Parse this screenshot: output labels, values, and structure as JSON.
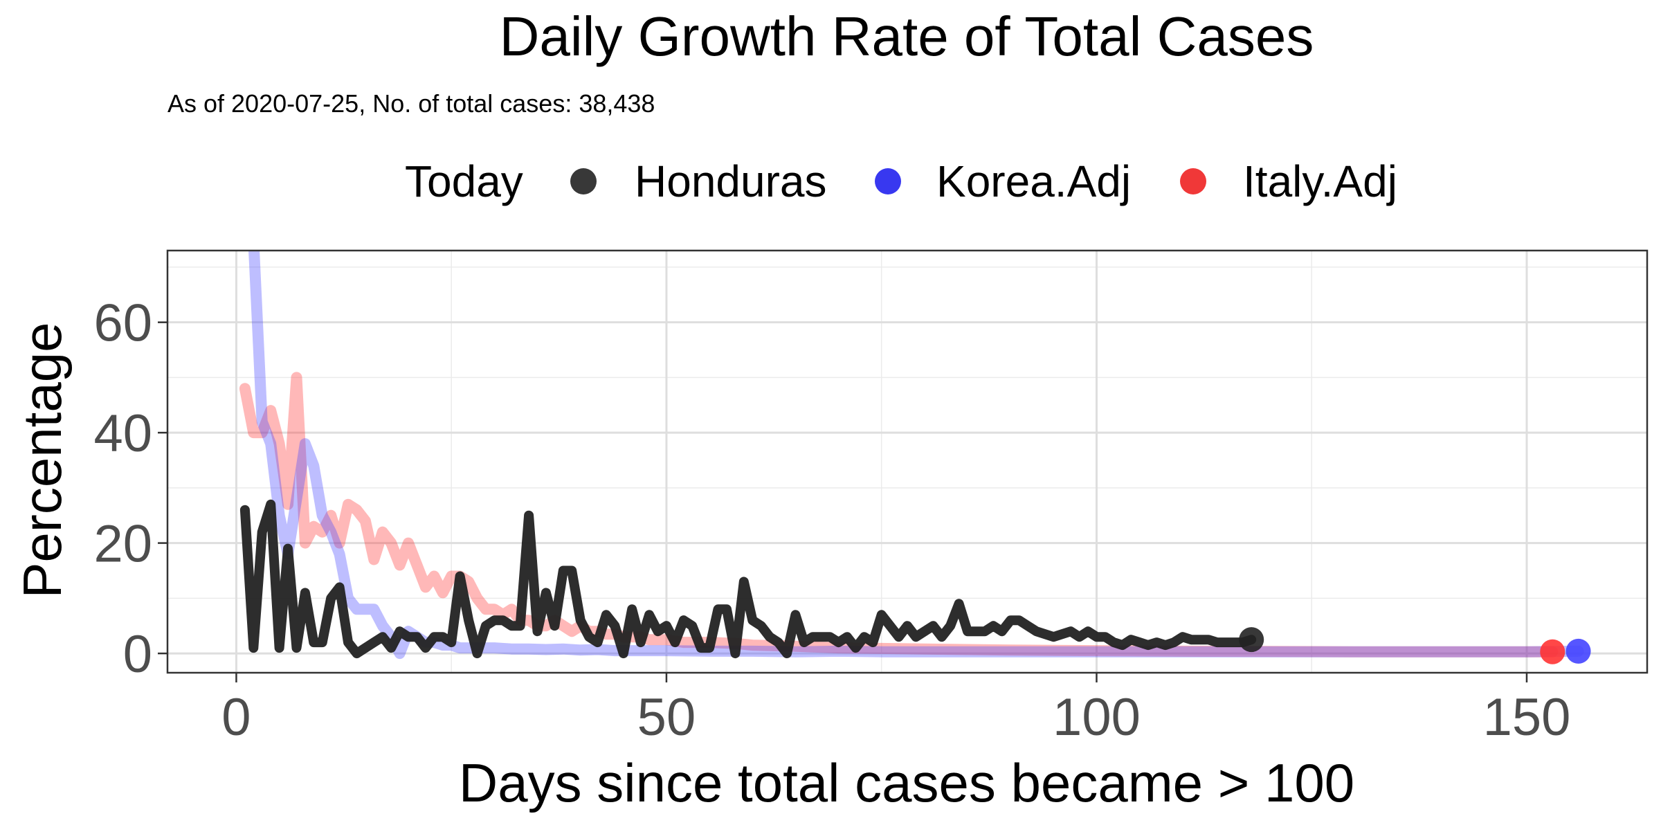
{
  "chart_data": {
    "type": "line",
    "title": "Daily Growth Rate of Total Cases",
    "subtitle": "As of 2020-07-25, No. of total cases: 38,438",
    "xlabel": "Days since total cases became > 100",
    "ylabel": "Percentage",
    "xlim": [
      -8,
      164
    ],
    "ylim": [
      -3.5,
      73
    ],
    "x_ticks": [
      0,
      50,
      100,
      150
    ],
    "y_ticks": [
      0,
      20,
      40,
      60
    ],
    "grid": true,
    "legend_position": "top",
    "legend": {
      "title": "Today",
      "entries": [
        {
          "label": "Honduras",
          "color": "#222222"
        },
        {
          "label": "Korea.Adj",
          "color": "#2222ee"
        },
        {
          "label": "Italy.Adj",
          "color": "#ee2222"
        }
      ]
    },
    "series": [
      {
        "name": "Italy.Adj",
        "color": "#ff3333",
        "today_point": {
          "x": 153,
          "y": 0.3
        },
        "points": [
          [
            1,
            48
          ],
          [
            2,
            40
          ],
          [
            3,
            40
          ],
          [
            4,
            44
          ],
          [
            5,
            38
          ],
          [
            6,
            27
          ],
          [
            7,
            50
          ],
          [
            8,
            20
          ],
          [
            9,
            23
          ],
          [
            10,
            22
          ],
          [
            11,
            25
          ],
          [
            12,
            20
          ],
          [
            13,
            27
          ],
          [
            14,
            26
          ],
          [
            15,
            24
          ],
          [
            16,
            17
          ],
          [
            17,
            22
          ],
          [
            18,
            20
          ],
          [
            19,
            16
          ],
          [
            20,
            20
          ],
          [
            21,
            16
          ],
          [
            22,
            12
          ],
          [
            23,
            14
          ],
          [
            24,
            11
          ],
          [
            25,
            14
          ],
          [
            26,
            14
          ],
          [
            27,
            13
          ],
          [
            28,
            10
          ],
          [
            29,
            8
          ],
          [
            30,
            8
          ],
          [
            31,
            7
          ],
          [
            32,
            8
          ],
          [
            33,
            6
          ],
          [
            34,
            6
          ],
          [
            35,
            5
          ],
          [
            36,
            5
          ],
          [
            37,
            6
          ],
          [
            38,
            5
          ],
          [
            39,
            4
          ],
          [
            40,
            5
          ],
          [
            41,
            4
          ],
          [
            42,
            4
          ],
          [
            43,
            3.5
          ],
          [
            44,
            3.5
          ],
          [
            45,
            3
          ],
          [
            46,
            3
          ],
          [
            47,
            3
          ],
          [
            48,
            2.5
          ],
          [
            50,
            2.5
          ],
          [
            52,
            2
          ],
          [
            55,
            2
          ],
          [
            58,
            1.8
          ],
          [
            60,
            1.5
          ],
          [
            65,
            1.3
          ],
          [
            70,
            1
          ],
          [
            75,
            0.9
          ],
          [
            80,
            0.8
          ],
          [
            85,
            0.7
          ],
          [
            90,
            0.6
          ],
          [
            100,
            0.5
          ],
          [
            110,
            0.4
          ],
          [
            120,
            0.35
          ],
          [
            130,
            0.3
          ],
          [
            140,
            0.3
          ],
          [
            153,
            0.3
          ]
        ]
      },
      {
        "name": "Korea.Adj",
        "color": "#4444ff",
        "today_point": {
          "x": 156,
          "y": 0.4
        },
        "points": [
          [
            2,
            75
          ],
          [
            3,
            42
          ],
          [
            4,
            38
          ],
          [
            5,
            25
          ],
          [
            6,
            18
          ],
          [
            7,
            28
          ],
          [
            8,
            38
          ],
          [
            9,
            34
          ],
          [
            10,
            25
          ],
          [
            11,
            22
          ],
          [
            12,
            18
          ],
          [
            13,
            10
          ],
          [
            14,
            8
          ],
          [
            15,
            8
          ],
          [
            16,
            8
          ],
          [
            17,
            5
          ],
          [
            18,
            3
          ],
          [
            19,
            0
          ],
          [
            20,
            4
          ],
          [
            21,
            3
          ],
          [
            22,
            2
          ],
          [
            23,
            2
          ],
          [
            24,
            1.5
          ],
          [
            25,
            1.5
          ],
          [
            26,
            1
          ],
          [
            27,
            1
          ],
          [
            28,
            1
          ],
          [
            30,
            1
          ],
          [
            32,
            0.8
          ],
          [
            34,
            0.8
          ],
          [
            36,
            0.7
          ],
          [
            38,
            0.8
          ],
          [
            40,
            0.6
          ],
          [
            42,
            0.7
          ],
          [
            44,
            0.5
          ],
          [
            46,
            0.5
          ],
          [
            50,
            0.5
          ],
          [
            55,
            0.4
          ],
          [
            60,
            0.4
          ],
          [
            65,
            0.3
          ],
          [
            70,
            0.4
          ],
          [
            75,
            0.3
          ],
          [
            80,
            0.3
          ],
          [
            85,
            0.3
          ],
          [
            90,
            0.3
          ],
          [
            95,
            0.3
          ],
          [
            100,
            0.3
          ],
          [
            110,
            0.3
          ],
          [
            120,
            0.3
          ],
          [
            130,
            0.3
          ],
          [
            140,
            0.3
          ],
          [
            150,
            0.3
          ],
          [
            156,
            0.4
          ]
        ]
      },
      {
        "name": "Honduras",
        "color": "#222222",
        "today_point": {
          "x": 118,
          "y": 2.5
        },
        "points": [
          [
            1,
            26
          ],
          [
            2,
            1
          ],
          [
            3,
            22
          ],
          [
            4,
            27
          ],
          [
            5,
            1
          ],
          [
            6,
            19
          ],
          [
            7,
            1
          ],
          [
            8,
            11
          ],
          [
            9,
            2
          ],
          [
            10,
            2
          ],
          [
            11,
            10
          ],
          [
            12,
            12
          ],
          [
            13,
            2
          ],
          [
            14,
            0
          ],
          [
            15,
            1
          ],
          [
            16,
            2
          ],
          [
            17,
            3
          ],
          [
            18,
            1
          ],
          [
            19,
            4
          ],
          [
            20,
            3
          ],
          [
            21,
            3
          ],
          [
            22,
            1
          ],
          [
            23,
            3
          ],
          [
            24,
            3
          ],
          [
            25,
            2
          ],
          [
            26,
            14
          ],
          [
            27,
            6
          ],
          [
            28,
            0
          ],
          [
            29,
            5
          ],
          [
            30,
            6
          ],
          [
            31,
            6
          ],
          [
            32,
            5
          ],
          [
            33,
            5
          ],
          [
            34,
            25
          ],
          [
            35,
            4
          ],
          [
            36,
            11
          ],
          [
            37,
            5
          ],
          [
            38,
            15
          ],
          [
            39,
            15
          ],
          [
            40,
            6
          ],
          [
            41,
            3
          ],
          [
            42,
            2
          ],
          [
            43,
            7
          ],
          [
            44,
            5
          ],
          [
            45,
            0
          ],
          [
            46,
            8
          ],
          [
            47,
            2
          ],
          [
            48,
            7
          ],
          [
            49,
            4
          ],
          [
            50,
            5
          ],
          [
            51,
            2
          ],
          [
            52,
            6
          ],
          [
            53,
            5
          ],
          [
            54,
            1
          ],
          [
            55,
            1
          ],
          [
            56,
            8
          ],
          [
            57,
            8
          ],
          [
            58,
            0
          ],
          [
            59,
            13
          ],
          [
            60,
            6
          ],
          [
            61,
            5
          ],
          [
            62,
            3
          ],
          [
            63,
            2
          ],
          [
            64,
            0
          ],
          [
            65,
            7
          ],
          [
            66,
            2
          ],
          [
            67,
            3
          ],
          [
            68,
            3
          ],
          [
            69,
            3
          ],
          [
            70,
            2
          ],
          [
            71,
            3
          ],
          [
            72,
            1
          ],
          [
            73,
            3
          ],
          [
            74,
            2
          ],
          [
            75,
            7
          ],
          [
            76,
            5
          ],
          [
            77,
            3
          ],
          [
            78,
            5
          ],
          [
            79,
            3
          ],
          [
            80,
            4
          ],
          [
            81,
            5
          ],
          [
            82,
            3
          ],
          [
            83,
            5
          ],
          [
            84,
            9
          ],
          [
            85,
            4
          ],
          [
            86,
            4
          ],
          [
            87,
            4
          ],
          [
            88,
            5
          ],
          [
            89,
            4
          ],
          [
            90,
            6
          ],
          [
            91,
            6
          ],
          [
            92,
            5
          ],
          [
            93,
            4
          ],
          [
            94,
            3.5
          ],
          [
            95,
            3
          ],
          [
            96,
            3.5
          ],
          [
            97,
            4
          ],
          [
            98,
            3
          ],
          [
            99,
            4
          ],
          [
            100,
            3
          ],
          [
            101,
            3
          ],
          [
            102,
            2
          ],
          [
            103,
            1.5
          ],
          [
            104,
            2.5
          ],
          [
            105,
            2
          ],
          [
            106,
            1.5
          ],
          [
            107,
            2
          ],
          [
            108,
            1.5
          ],
          [
            109,
            2
          ],
          [
            110,
            3
          ],
          [
            111,
            2.5
          ],
          [
            112,
            2.5
          ],
          [
            113,
            2.5
          ],
          [
            114,
            2
          ],
          [
            115,
            2
          ],
          [
            116,
            2
          ],
          [
            117,
            2
          ],
          [
            118,
            2.5
          ]
        ]
      }
    ]
  }
}
